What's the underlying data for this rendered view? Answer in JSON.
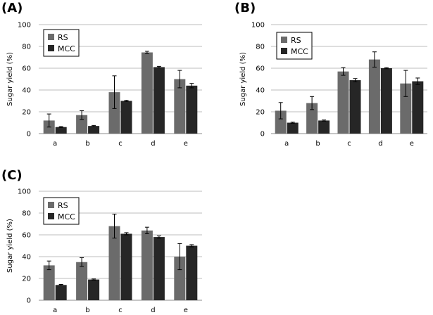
{
  "chart_data": [
    {
      "type": "bar",
      "panel": "(A)",
      "categories": [
        "a",
        "b",
        "c",
        "d",
        "e"
      ],
      "series": [
        {
          "name": "RS",
          "color": "#6b6b6b",
          "values": [
            12,
            17,
            38,
            74.5,
            50
          ],
          "errors": [
            6,
            4,
            15,
            1,
            8
          ]
        },
        {
          "name": "MCC",
          "color": "#262626",
          "values": [
            6,
            7,
            30,
            61,
            44
          ],
          "errors": [
            0.5,
            0.5,
            0.5,
            0.7,
            2
          ]
        }
      ],
      "ylabel": "Sugar yield (%)",
      "ylim": [
        0,
        100
      ],
      "yticks": [
        "0",
        "20",
        "40",
        "60",
        "80",
        "100"
      ],
      "grid": true,
      "legend": "top-left"
    },
    {
      "type": "bar",
      "panel": "(B)",
      "categories": [
        "a",
        "b",
        "c",
        "d",
        "e"
      ],
      "series": [
        {
          "name": "RS",
          "color": "#6b6b6b",
          "values": [
            21,
            28,
            57,
            68,
            46
          ],
          "errors": [
            7.5,
            6,
            3.5,
            7,
            12
          ]
        },
        {
          "name": "MCC",
          "color": "#262626",
          "values": [
            10,
            12,
            49,
            60,
            48
          ],
          "errors": [
            0.5,
            0.5,
            1.5,
            0.5,
            3
          ]
        }
      ],
      "ylabel": "Sugar yield (%)",
      "ylim": [
        0,
        100
      ],
      "yticks": [
        "0",
        "20",
        "40",
        "60",
        "80",
        "100"
      ],
      "grid": true,
      "legend": "top-left"
    },
    {
      "type": "bar",
      "panel": "(C)",
      "categories": [
        "a",
        "b",
        "c",
        "d",
        "e"
      ],
      "series": [
        {
          "name": "RS",
          "color": "#6b6b6b",
          "values": [
            32,
            35,
            68,
            64,
            40
          ],
          "errors": [
            4,
            4,
            11,
            3,
            12
          ]
        },
        {
          "name": "MCC",
          "color": "#262626",
          "values": [
            14,
            19,
            61,
            58,
            50
          ],
          "errors": [
            0.5,
            0.5,
            1,
            1,
            1
          ]
        }
      ],
      "ylabel": "Sugar yield (%)",
      "ylim": [
        0,
        100
      ],
      "yticks": [
        "0",
        "20",
        "40",
        "60",
        "80",
        "100"
      ],
      "grid": true,
      "legend": "top-left"
    }
  ]
}
